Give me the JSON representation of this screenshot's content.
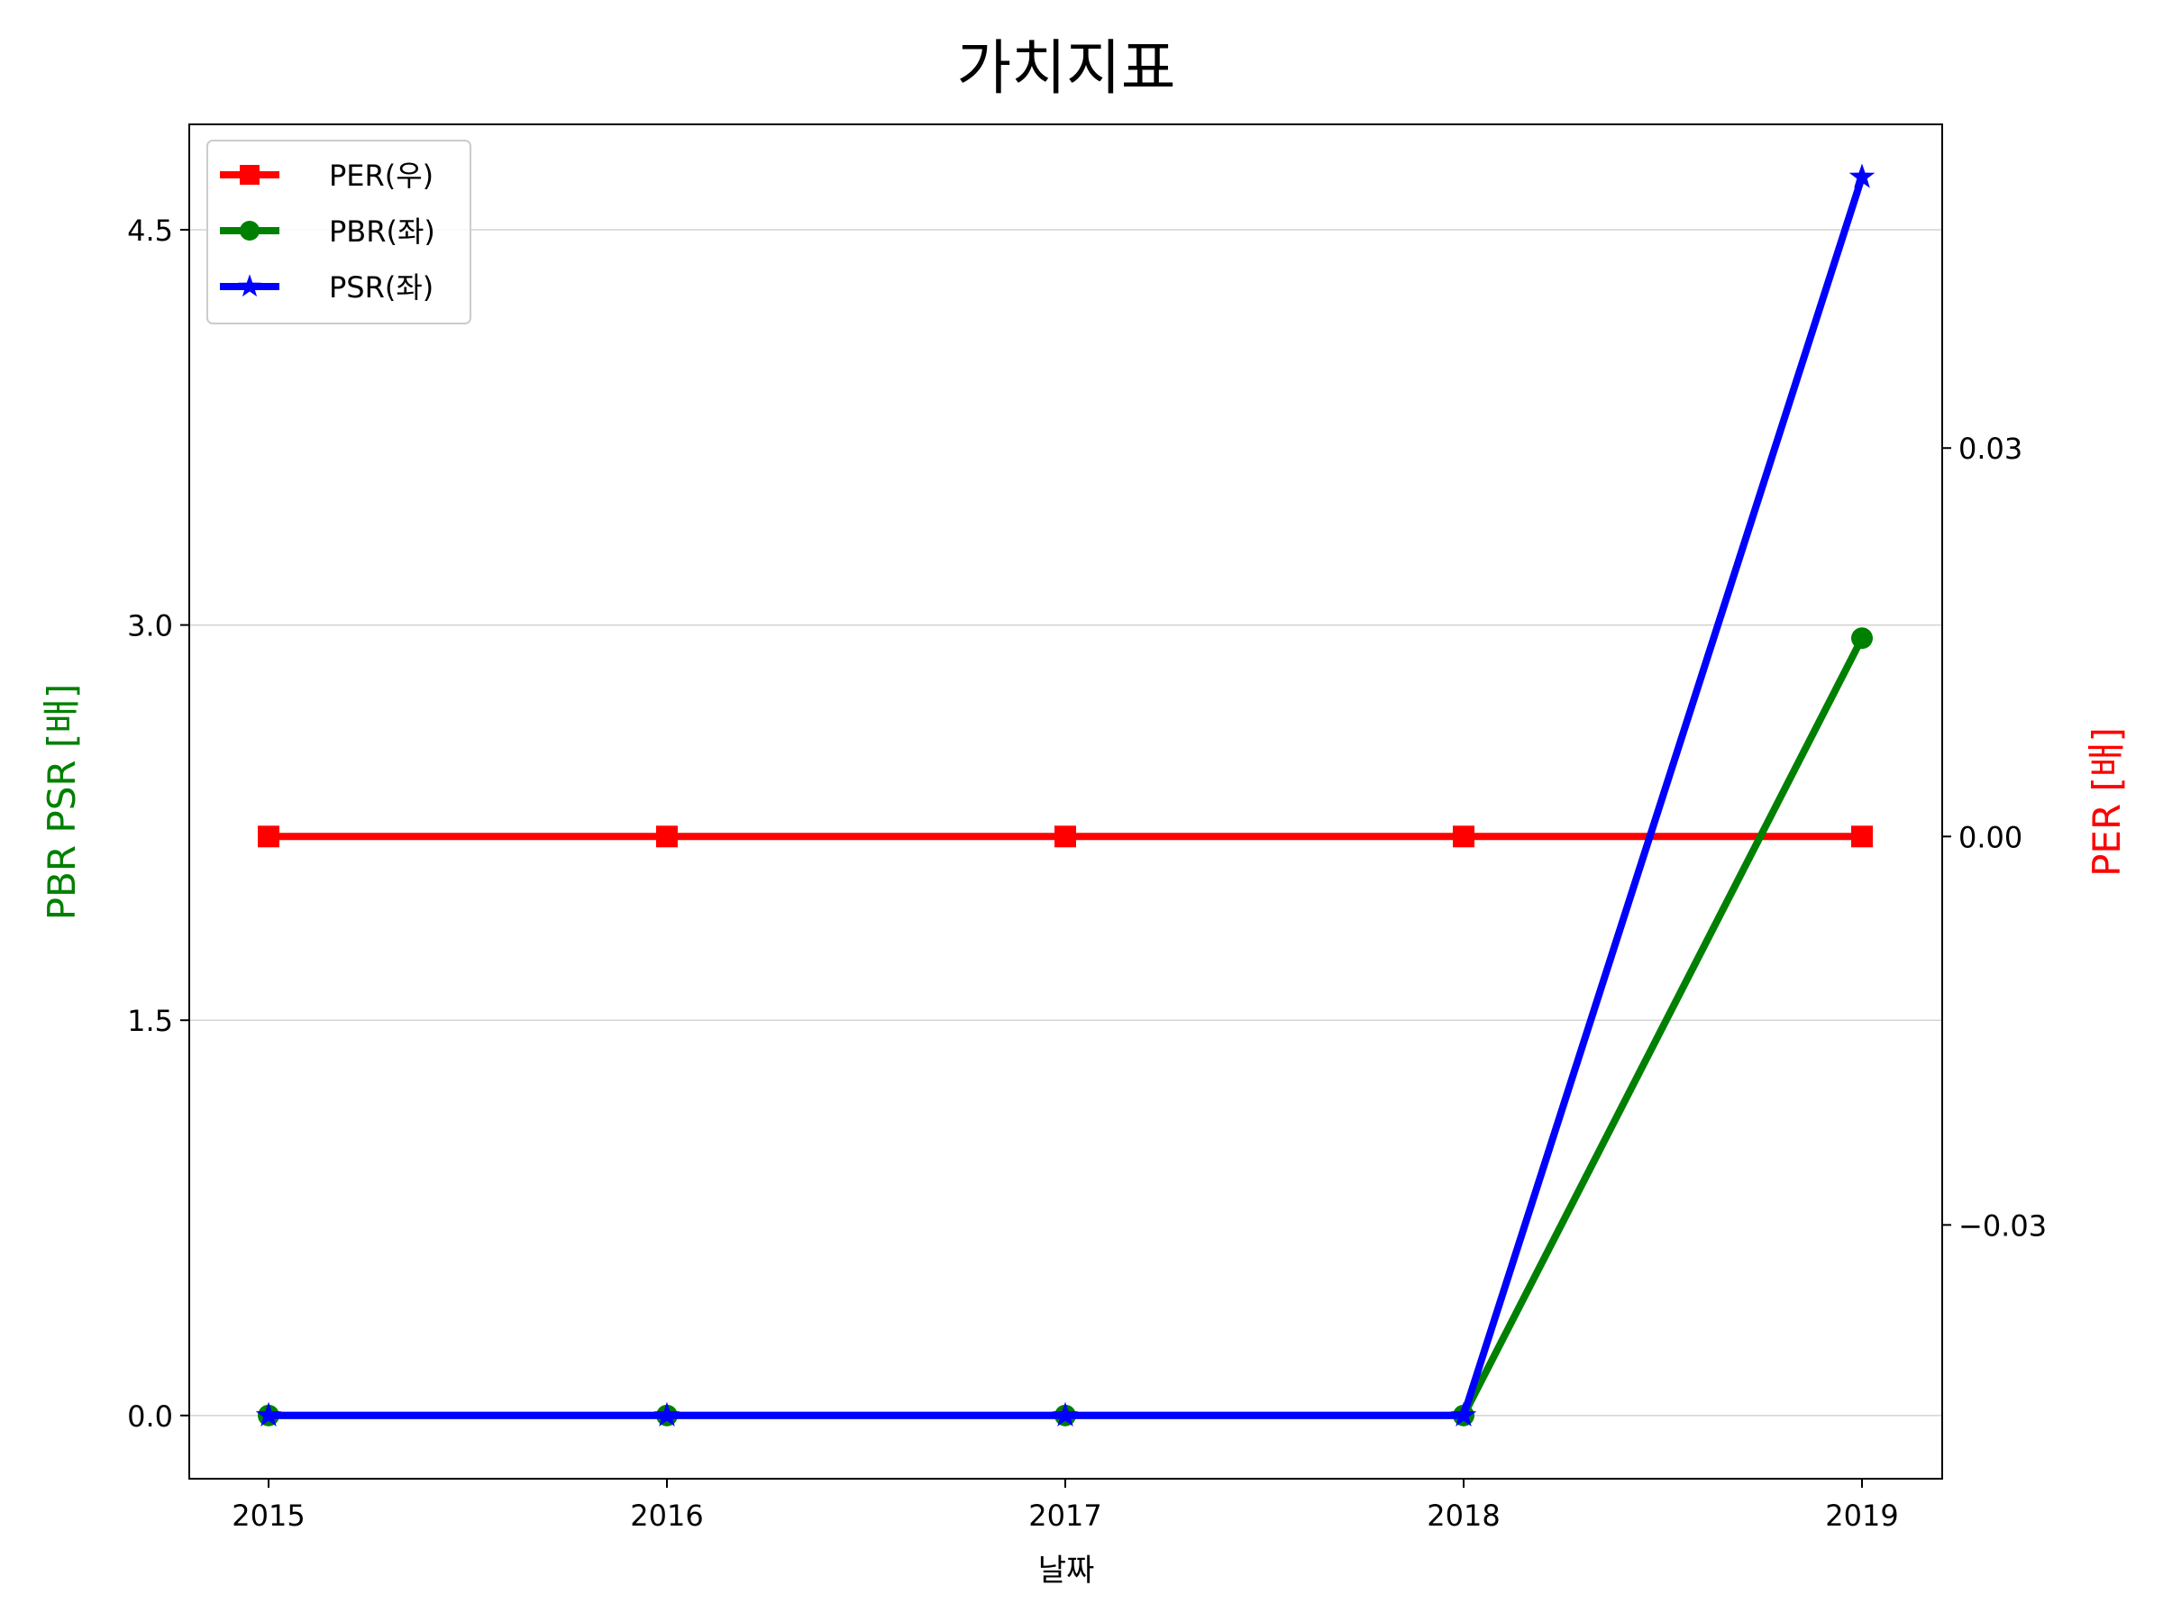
{
  "chart_data": {
    "type": "line",
    "title": "가치지표",
    "xlabel": "날짜",
    "ylabel_left": "PBR PSR [배]",
    "ylabel_right": "PER [배]",
    "categories": [
      "2015",
      "2016",
      "2017",
      "2018",
      "2019"
    ],
    "left_axis": {
      "ylim": [
        -0.24,
        4.9
      ],
      "ticks": [
        0.0,
        1.5,
        3.0,
        4.5
      ],
      "tick_labels": [
        "0.0",
        "1.5",
        "3.0",
        "4.5"
      ],
      "grid": true
    },
    "right_axis": {
      "ylim": [
        -0.0496,
        0.055
      ],
      "ticks": [
        -0.03,
        0.0,
        0.03
      ],
      "tick_labels": [
        "−0.03",
        "0.00",
        "0.03"
      ]
    },
    "series": [
      {
        "name": "PER(우)",
        "axis": "right",
        "color": "#ff0000",
        "marker": "square",
        "values": [
          0,
          0,
          0,
          0,
          0
        ]
      },
      {
        "name": "PBR(좌)",
        "axis": "left",
        "color": "#008000",
        "marker": "circle",
        "values": [
          0,
          0,
          0,
          0,
          2.95
        ]
      },
      {
        "name": "PSR(좌)",
        "axis": "left",
        "color": "#0000ff",
        "marker": "star",
        "values": [
          0,
          0,
          0,
          0,
          4.7
        ]
      }
    ],
    "legend": "top-left"
  }
}
